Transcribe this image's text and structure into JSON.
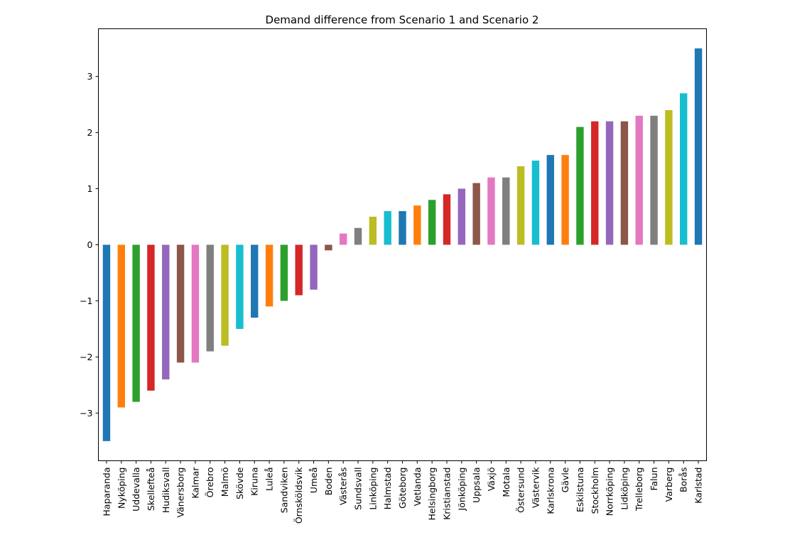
{
  "chart_data": {
    "type": "bar",
    "title": "Demand difference from Scenario 1 and Scenario 2",
    "xlabel": "",
    "ylabel": "",
    "ylim": [
      -3.85,
      3.85
    ],
    "yticks": [
      -3,
      -2,
      -1,
      0,
      1,
      2,
      3
    ],
    "ytick_labels": [
      "−3",
      "−2",
      "−1",
      "0",
      "1",
      "2",
      "3"
    ],
    "grid": false,
    "categories": [
      "Haparanda",
      "Nyköping",
      "Uddevalla",
      "Skellefteå",
      "Hudiksvall",
      "Vänersborg",
      "Kalmar",
      "Örebro",
      "Malmö",
      "Skövde",
      "Kiruna",
      "Luleå",
      "Sandviken",
      "Örnsköldsvik",
      "Umeå",
      "Boden",
      "Västerås",
      "Sundsvall",
      "Linköping",
      "Halmstad",
      "Göteborg",
      "Vetlanda",
      "Helsingborg",
      "Kristianstad",
      "Jönköping",
      "Uppsala",
      "Växjö",
      "Motala",
      "Östersund",
      "Västervik",
      "Karlskrona",
      "Gävle",
      "Eskilstuna",
      "Stockholm",
      "Norrköping",
      "Lidköping",
      "Trelleborg",
      "Falun",
      "Varberg",
      "Borås",
      "Karlstad"
    ],
    "values": [
      -3.5,
      -2.9,
      -2.8,
      -2.6,
      -2.4,
      -2.1,
      -2.1,
      -1.9,
      -1.8,
      -1.5,
      -1.3,
      -1.1,
      -1.0,
      -0.9,
      -0.8,
      -0.1,
      0.2,
      0.3,
      0.5,
      0.6,
      0.6,
      0.7,
      0.8,
      0.9,
      1.0,
      1.1,
      1.2,
      1.2,
      1.4,
      1.5,
      1.6,
      1.6,
      2.1,
      2.2,
      2.2,
      2.2,
      2.3,
      2.3,
      2.4,
      2.7,
      3.5
    ],
    "colors": [
      "#1f77b4",
      "#ff7f0e",
      "#2ca02c",
      "#d62728",
      "#9467bd",
      "#8c564b",
      "#e377c2",
      "#7f7f7f",
      "#bcbd22",
      "#17becf"
    ]
  }
}
